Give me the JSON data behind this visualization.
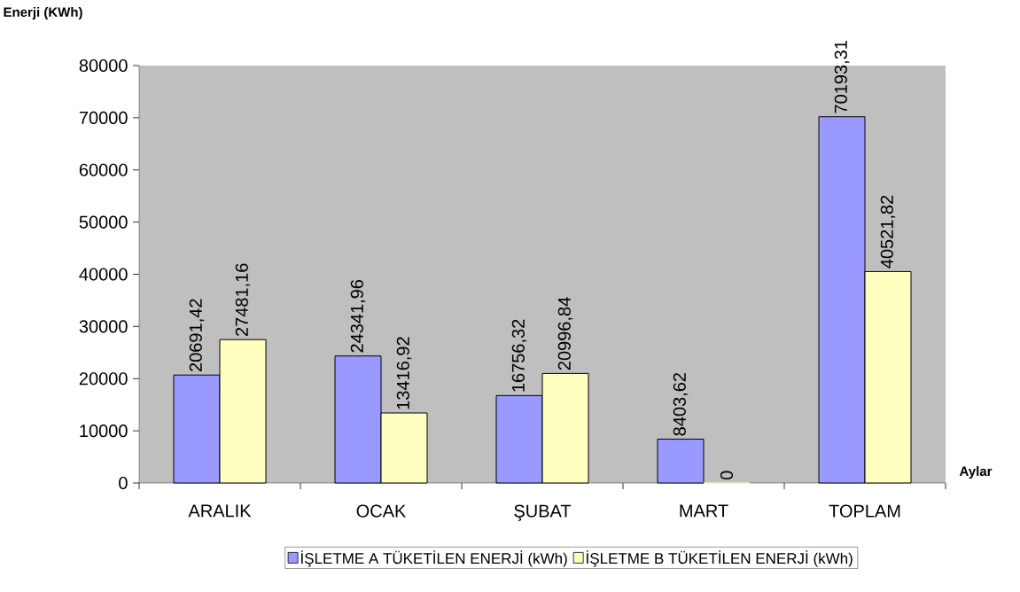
{
  "chart_data": {
    "type": "bar",
    "ylabel": "Enerji (KWh)",
    "xlabel": "Aylar",
    "categories": [
      "ARALIK",
      "OCAK",
      "ŞUBAT",
      "MART",
      "TOPLAM"
    ],
    "series": [
      {
        "name": "İŞLETME A  TÜKETİLEN ENERJİ (kWh)",
        "color": "#9999ff",
        "values": [
          20691.42,
          24341.96,
          16756.32,
          8403.62,
          70193.31
        ],
        "value_labels": [
          "20691,42",
          "24341,96",
          "16756,32",
          "8403,62",
          "70193,31"
        ]
      },
      {
        "name": "İŞLETME B TÜKETİLEN ENERJİ (kWh)",
        "color": "#ffffc0",
        "values": [
          27481.16,
          13416.92,
          20996.84,
          0,
          40521.82
        ],
        "value_labels": [
          "27481,16",
          "13416,92",
          "20996,84",
          "0",
          "40521,82"
        ]
      }
    ],
    "ylim": [
      0,
      80000
    ],
    "yticks": [
      0,
      10000,
      20000,
      30000,
      40000,
      50000,
      60000,
      70000,
      80000
    ],
    "legend": "bottom"
  }
}
